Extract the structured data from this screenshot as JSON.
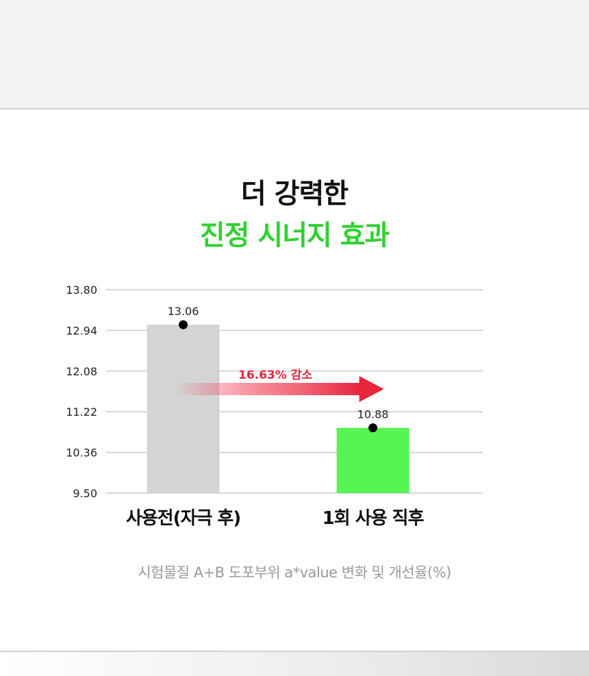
{
  "title": {
    "line1": "더 강력한",
    "line2": "진정 시너지 효과",
    "line2_color": "#2fd12f"
  },
  "caption": "시험물질 A+B 도포부위 a*value 변화 및 개선율(%)",
  "chart_data": {
    "type": "bar",
    "categories": [
      "사용전(자극 후)",
      "1회 사용 직후"
    ],
    "values": [
      13.06,
      10.88
    ],
    "bar_colors": [
      "#d4d4d4",
      "#56f553"
    ],
    "data_labels": [
      "13.06",
      "10.88"
    ],
    "y_ticks": [
      13.8,
      12.94,
      12.08,
      11.22,
      10.36,
      9.5
    ],
    "y_tick_labels": [
      "13.80",
      "12.94",
      "12.08",
      "11.22",
      "10.36",
      "9.50"
    ],
    "ylim": [
      9.5,
      13.8
    ],
    "grid": true,
    "annotation": {
      "text": "16.63% 감소",
      "color": "#e8253f"
    }
  }
}
